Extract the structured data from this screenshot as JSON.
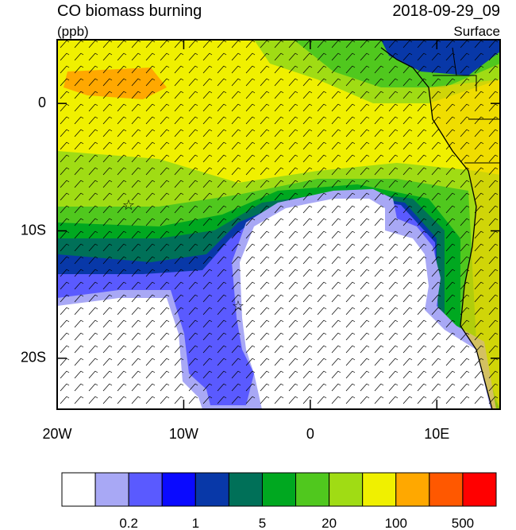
{
  "header": {
    "title": "CO biomass burning",
    "date": "2018-09-29_09",
    "units": "(ppb)",
    "level": "Surface"
  },
  "map": {
    "lon_range": [
      -20,
      15
    ],
    "lat_range": [
      -24,
      5
    ],
    "lon_ticks": [
      {
        "value": -20,
        "label": "20W"
      },
      {
        "value": -10,
        "label": "10W"
      },
      {
        "value": 0,
        "label": "0"
      },
      {
        "value": 10,
        "label": "10E"
      }
    ],
    "lat_ticks": [
      {
        "value": 0,
        "label": "0"
      },
      {
        "value": -10,
        "label": "10S"
      },
      {
        "value": -20,
        "label": "20S"
      }
    ]
  },
  "colorbar": {
    "colors": [
      "#ffffff",
      "#a8a8f5",
      "#5a5aff",
      "#0a0aff",
      "#0838a8",
      "#007058",
      "#00a820",
      "#50c81e",
      "#a0dc14",
      "#f0f000",
      "#ffa800",
      "#ff5800",
      "#ff0000"
    ],
    "labels": [
      "0.2",
      "1",
      "5",
      "20",
      "100",
      "500"
    ]
  }
}
